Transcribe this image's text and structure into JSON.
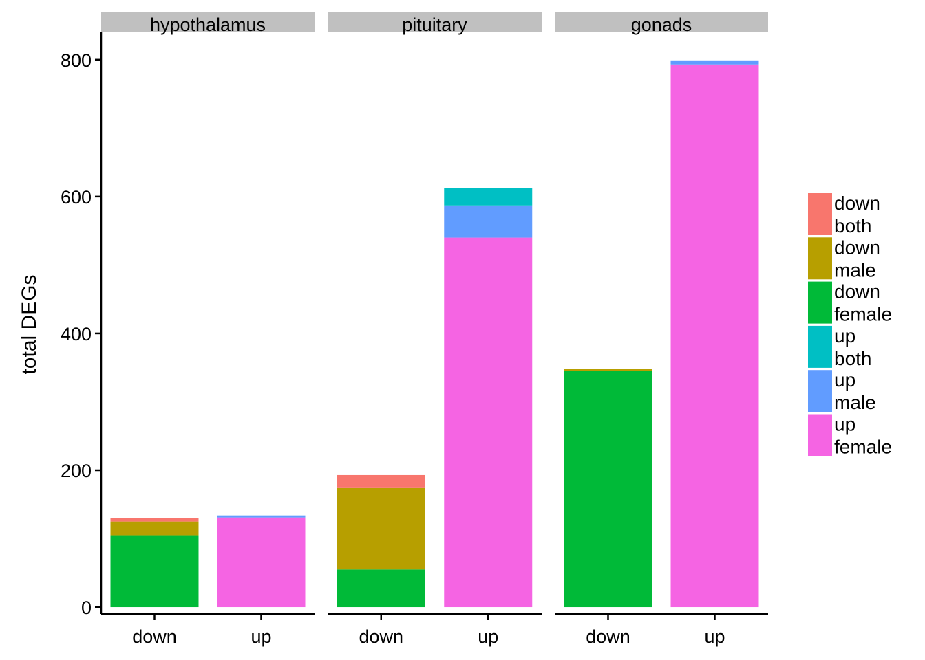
{
  "chart_data": {
    "type": "bar",
    "stacked": true,
    "facets": [
      {
        "name": "hypothalamus",
        "categories": [
          "down",
          "up"
        ],
        "stacks": [
          [
            {
              "series": "down female",
              "value": 105
            },
            {
              "series": "down male",
              "value": 20
            },
            {
              "series": "down both",
              "value": 5
            }
          ],
          [
            {
              "series": "up female",
              "value": 131
            },
            {
              "series": "up male",
              "value": 3
            }
          ]
        ]
      },
      {
        "name": "pituitary",
        "categories": [
          "down",
          "up"
        ],
        "stacks": [
          [
            {
              "series": "down female",
              "value": 55
            },
            {
              "series": "down male",
              "value": 119
            },
            {
              "series": "down both",
              "value": 19
            }
          ],
          [
            {
              "series": "up female",
              "value": 540
            },
            {
              "series": "up male",
              "value": 47
            },
            {
              "series": "up both",
              "value": 25
            }
          ]
        ]
      },
      {
        "name": "gonads",
        "categories": [
          "down",
          "up"
        ],
        "stacks": [
          [
            {
              "series": "down female",
              "value": 345
            },
            {
              "series": "down male",
              "value": 3
            }
          ],
          [
            {
              "series": "up female",
              "value": 793
            },
            {
              "series": "up male",
              "value": 6
            }
          ]
        ]
      }
    ],
    "ylabel": "total DEGs",
    "xlabel": "",
    "ylim": [
      -10,
      840
    ],
    "yticks": [
      0,
      200,
      400,
      600,
      800
    ],
    "grid": false,
    "legend_position": "right",
    "legend": [
      {
        "series": "down both",
        "lines": [
          "down",
          "both"
        ],
        "color": "#F8766D"
      },
      {
        "series": "down male",
        "lines": [
          "down",
          "male"
        ],
        "color": "#B79F00"
      },
      {
        "series": "down female",
        "lines": [
          "down",
          "female"
        ],
        "color": "#00BA38"
      },
      {
        "series": "up both",
        "lines": [
          "up",
          "both"
        ],
        "color": "#00BFC4"
      },
      {
        "series": "up male",
        "lines": [
          "up",
          "male"
        ],
        "color": "#619CFF"
      },
      {
        "series": "up female",
        "lines": [
          "up",
          "female"
        ],
        "color": "#F564E3"
      }
    ],
    "colors": {
      "down both": "#F8766D",
      "down male": "#B79F00",
      "down female": "#00BA38",
      "up both": "#00BFC4",
      "up male": "#619CFF",
      "up female": "#F564E3"
    },
    "strip_color": "#C0C0C0"
  }
}
